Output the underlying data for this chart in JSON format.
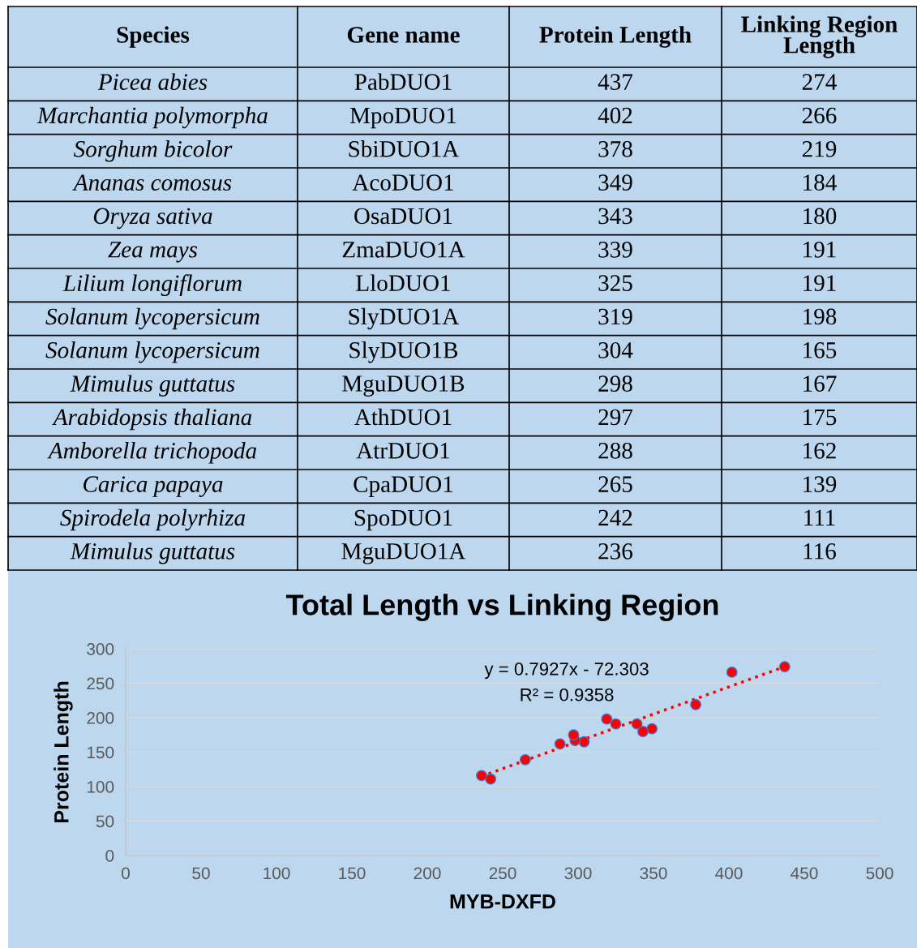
{
  "chart_data": {
    "type": "scatter",
    "title": "Total Length vs Linking Region",
    "xlabel": "MYB-DXFD",
    "ylabel": "Protein Length",
    "xlim": [
      0,
      500
    ],
    "xticks": [
      0,
      50,
      100,
      150,
      200,
      250,
      300,
      350,
      400,
      450,
      500
    ],
    "ylim": [
      0,
      300
    ],
    "yticks": [
      0,
      50,
      100,
      150,
      200,
      250,
      300
    ],
    "grid": "y",
    "series": [
      {
        "color": "#ff0000",
        "marker": "circle",
        "x": [
          437,
          402,
          378,
          349,
          343,
          339,
          325,
          319,
          304,
          298,
          297,
          288,
          265,
          242,
          236
        ],
        "values": [
          274,
          266,
          219,
          184,
          180,
          191,
          191,
          198,
          165,
          167,
          175,
          162,
          139,
          111,
          116
        ]
      },
      {
        "type": "line",
        "color": "#ff0000",
        "line_style": "dotted",
        "x": [
          236,
          437
        ],
        "values": [
          115,
          274
        ]
      }
    ],
    "annotations": [
      "Species",
      "Gene name",
      "Protein Length",
      "Linking Region\nLength",
      "Picea abies",
      "PabDUO1",
      "437",
      "274",
      "Marchantia polymorpha",
      "MpoDUO1",
      "402",
      "266",
      "Sorghum bicolor",
      "SbiDUO1A",
      "378",
      "219",
      "Ananas comosus",
      "AcoDUO1",
      "349",
      "184",
      "Oryza sativa",
      "OsaDUO1",
      "343",
      "180",
      "Zea mays",
      "ZmaDUO1A",
      "339",
      "191",
      "Lilium longiflorum",
      "LloDUO1",
      "325",
      "191",
      "Solanum lycopersicum",
      "SlyDUO1A",
      "319",
      "198",
      "Solanum lycopersicum",
      "SlyDUO1B",
      "304",
      "165",
      "Mimulus guttatus",
      "MguDUO1B",
      "298",
      "167",
      "Arabidopsis thaliana",
      "AthDUO1",
      "297",
      "175",
      "Amborella trichopoda",
      "AtrDUO1",
      "288",
      "162",
      "Carica papaya",
      "CpaDUO1",
      "265",
      "139",
      "Spirodela polyrhiza",
      "SpoDUO1",
      "242",
      "111",
      "Mimulus guttatus",
      "MguDUO1A",
      "236",
      "116",
      "y = 0.7927x - 72.303",
      "R² = 0.9358"
    ]
  }
}
